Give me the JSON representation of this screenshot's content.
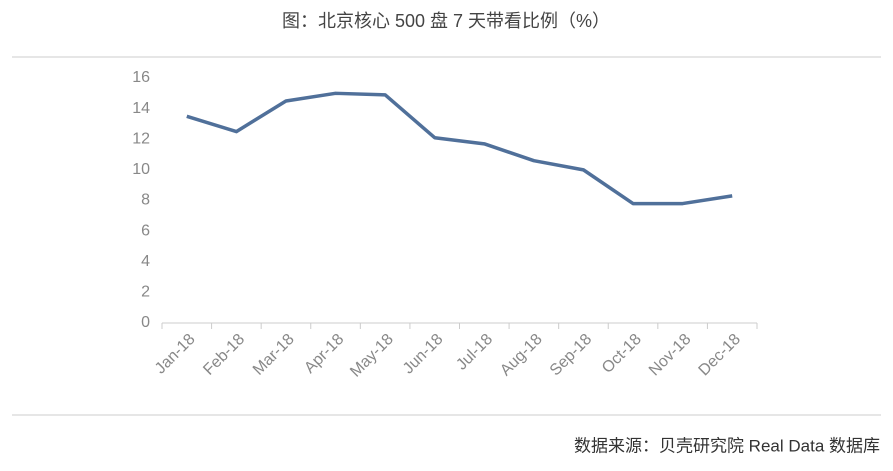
{
  "chart_data": {
    "type": "line",
    "title": "图：北京核心 500 盘 7 天带看比例（%）",
    "source": "数据来源：贝壳研究院 Real Data 数据库",
    "categories": [
      "Jan-18",
      "Feb-18",
      "Mar-18",
      "Apr-18",
      "May-18",
      "Jun-18",
      "Jul-18",
      "Aug-18",
      "Sep-18",
      "Oct-18",
      "Nov-18",
      "Dec-18"
    ],
    "values": [
      13.5,
      12.5,
      14.5,
      15.0,
      14.9,
      12.1,
      11.7,
      10.6,
      10.0,
      7.8,
      7.8,
      8.3
    ],
    "color": "#50709a",
    "ylim": [
      0,
      16
    ],
    "yticks": [
      0,
      2,
      4,
      6,
      8,
      10,
      12,
      14,
      16
    ],
    "grid": false
  }
}
